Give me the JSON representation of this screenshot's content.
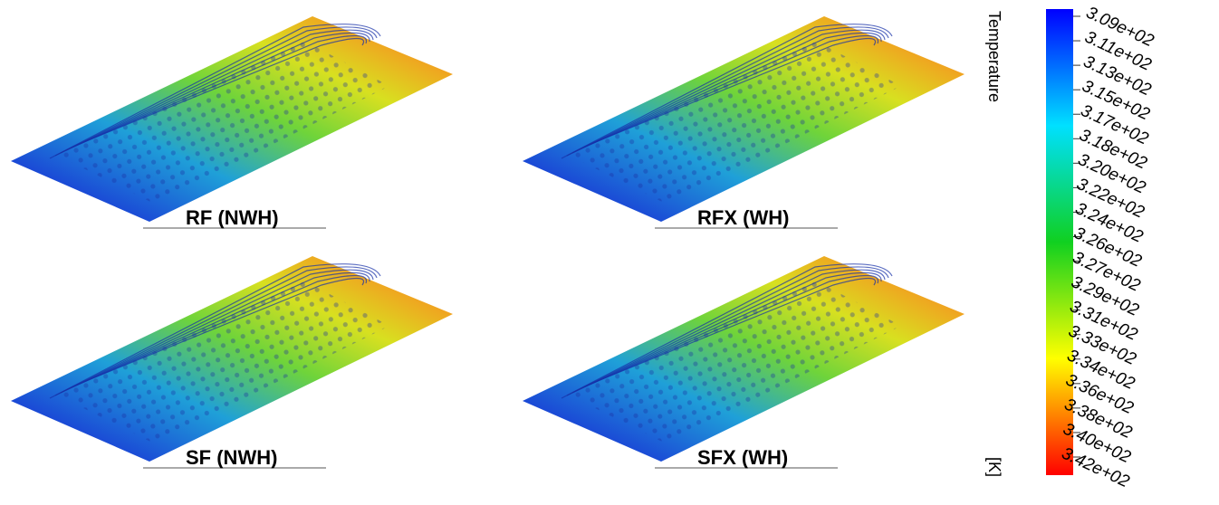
{
  "panels": [
    {
      "label": "RF (NWH)"
    },
    {
      "label": "RFX (WH)"
    },
    {
      "label": "SF (NWH)"
    },
    {
      "label": "SFX (WH)"
    }
  ],
  "colorbar": {
    "title": "Temperature",
    "unit": "[K]",
    "ticks": [
      "3.09e+02",
      "3.11e+02",
      "3.13e+02",
      "3.15e+02",
      "3.17e+02",
      "3.18e+02",
      "3.20e+02",
      "3.22e+02",
      "3.24e+02",
      "3.26e+02",
      "3.27e+02",
      "3.29e+02",
      "3.31e+02",
      "3.33e+02",
      "3.34e+02",
      "3.36e+02",
      "3.38e+02",
      "3.40e+02",
      "3.42e+02"
    ]
  }
}
